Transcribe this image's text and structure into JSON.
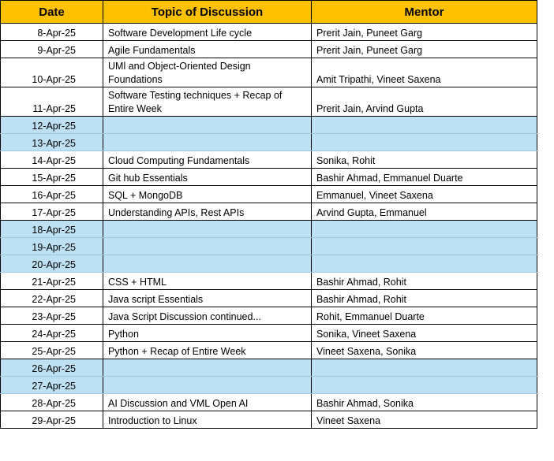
{
  "headers": {
    "date": "Date",
    "topic": "Topic of Discussion",
    "mentor": "Mentor"
  },
  "colors": {
    "header_bg": "#ffc000",
    "weekend_bg": "#bde0f3"
  },
  "rows": [
    {
      "date": "8-Apr-25",
      "topic": "Software Development Life cycle",
      "mentor": "Prerit Jain, Puneet Garg",
      "weekend": false
    },
    {
      "date": "9-Apr-25",
      "topic": "Agile Fundamentals",
      "mentor": "Prerit Jain, Puneet Garg",
      "weekend": false
    },
    {
      "date": "10-Apr-25",
      "topic": "UMl and Object-Oriented Design Foundations",
      "mentor": "Amit Tripathi, Vineet Saxena",
      "weekend": false
    },
    {
      "date": "11-Apr-25",
      "topic": "Software Testing techniques + Recap of Entire Week",
      "mentor": "Prerit Jain, Arvind Gupta",
      "weekend": false
    },
    {
      "date": "12-Apr-25",
      "topic": "",
      "mentor": "",
      "weekend": true
    },
    {
      "date": "13-Apr-25",
      "topic": "",
      "mentor": "",
      "weekend": true
    },
    {
      "date": "14-Apr-25",
      "topic": "Cloud Computing Fundamentals",
      "mentor": "Sonika, Rohit",
      "weekend": false
    },
    {
      "date": "15-Apr-25",
      "topic": "Git hub Essentials",
      "mentor": "Bashir Ahmad, Emmanuel Duarte",
      "weekend": false
    },
    {
      "date": "16-Apr-25",
      "topic": "SQL + MongoDB",
      "mentor": "Emmanuel, Vineet Saxena",
      "weekend": false
    },
    {
      "date": "17-Apr-25",
      "topic": "Understanding APIs, Rest APIs",
      "mentor": "Arvind Gupta, Emmanuel",
      "weekend": false
    },
    {
      "date": "18-Apr-25",
      "topic": "",
      "mentor": "",
      "weekend": true
    },
    {
      "date": "19-Apr-25",
      "topic": "",
      "mentor": "",
      "weekend": true
    },
    {
      "date": "20-Apr-25",
      "topic": "",
      "mentor": "",
      "weekend": true
    },
    {
      "date": "21-Apr-25",
      "topic": "CSS + HTML",
      "mentor": "Bashir Ahmad, Rohit",
      "weekend": false
    },
    {
      "date": "22-Apr-25",
      "topic": "Java script Essentials",
      "mentor": "Bashir Ahmad, Rohit",
      "weekend": false
    },
    {
      "date": "23-Apr-25",
      "topic": "Java Script Discussion continued...",
      "mentor": "Rohit, Emmanuel Duarte",
      "weekend": false
    },
    {
      "date": "24-Apr-25",
      "topic": "Python",
      "mentor": "Sonika, Vineet Saxena",
      "weekend": false
    },
    {
      "date": "25-Apr-25",
      "topic": "Python + Recap of Entire Week",
      "mentor": "Vineet Saxena, Sonika",
      "weekend": false
    },
    {
      "date": "26-Apr-25",
      "topic": "",
      "mentor": "",
      "weekend": true
    },
    {
      "date": "27-Apr-25",
      "topic": "",
      "mentor": "",
      "weekend": true
    },
    {
      "date": "28-Apr-25",
      "topic": "AI Discussion and VML Open AI",
      "mentor": "Bashir Ahmad, Sonika",
      "weekend": false
    },
    {
      "date": "29-Apr-25",
      "topic": "Introduction to Linux",
      "mentor": "Vineet Saxena",
      "weekend": false
    }
  ]
}
